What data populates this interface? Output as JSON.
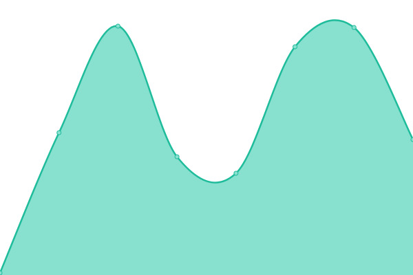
{
  "chart_data": {
    "type": "area",
    "categories": [
      null,
      null,
      null,
      null,
      null,
      null,
      null,
      null
    ],
    "values": [
      3,
      207,
      362,
      172,
      148,
      332,
      360,
      197
    ],
    "ylim": [
      0,
      400
    ],
    "color": "#1fbc9c",
    "fill": "#88e0cf",
    "markers": true
  }
}
